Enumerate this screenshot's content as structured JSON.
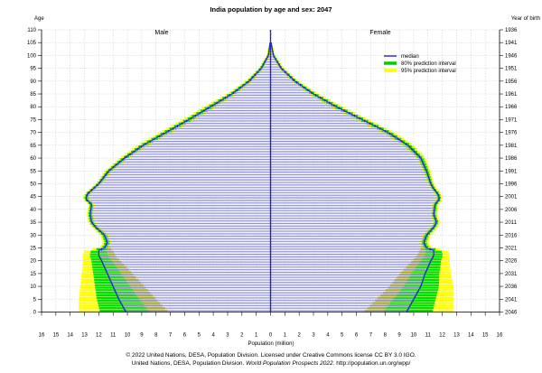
{
  "chart_data": {
    "type": "population_pyramid",
    "title": "India population by age and sex: 2047",
    "y_left_label": "Age",
    "y_right_label": "Year of birth",
    "x_label": "Population (million)",
    "left_group": "Male",
    "right_group": "Female",
    "x_ticks": [
      16,
      15,
      14,
      13,
      12,
      11,
      10,
      9,
      8,
      7,
      6,
      5,
      4,
      3,
      2,
      1,
      0,
      1,
      2,
      3,
      4,
      5,
      6,
      7,
      8,
      9,
      10,
      11,
      12,
      13,
      14,
      15,
      16
    ],
    "age_ticks": [
      0,
      5,
      10,
      15,
      20,
      25,
      30,
      35,
      40,
      45,
      50,
      55,
      60,
      65,
      70,
      75,
      80,
      85,
      90,
      95,
      100,
      105,
      110
    ],
    "birth_year_ticks": [
      "2046",
      "2041",
      "2036",
      "2031",
      "2026",
      "2021",
      "2016",
      "2011",
      "2006",
      "2001",
      "1996",
      "1991",
      "1986",
      "1981",
      "1976",
      "1971",
      "1966",
      "1961",
      "1956",
      "1951",
      "1946",
      "1941",
      "1936"
    ],
    "ylim": [
      0,
      110
    ],
    "xlim": [
      -16,
      16
    ],
    "legend": [
      {
        "label": "median",
        "color": "#2424c8"
      },
      {
        "label": "80% prediction interval",
        "color": "#00cc00"
      },
      {
        "label": "95% prediction interval",
        "color": "#ffff00"
      }
    ],
    "colors": {
      "median": "#2424c8",
      "pi80": "#00dd00",
      "pi95": "#ffff00",
      "bar": "#9090dd"
    },
    "series": {
      "male_median_knots": [
        [
          0,
          10.1
        ],
        [
          5,
          10.6
        ],
        [
          10,
          11.0
        ],
        [
          15,
          11.4
        ],
        [
          20,
          11.8
        ],
        [
          22,
          12.0
        ],
        [
          24,
          12.0
        ],
        [
          25,
          11.6
        ],
        [
          27,
          11.4
        ],
        [
          30,
          11.6
        ],
        [
          33,
          12.2
        ],
        [
          35,
          12.5
        ],
        [
          38,
          12.6
        ],
        [
          42,
          12.5
        ],
        [
          44,
          12.9
        ],
        [
          46,
          12.8
        ],
        [
          48,
          12.4
        ],
        [
          50,
          12.0
        ],
        [
          55,
          11.3
        ],
        [
          60,
          10.2
        ],
        [
          65,
          8.9
        ],
        [
          70,
          7.3
        ],
        [
          75,
          5.7
        ],
        [
          80,
          4.2
        ],
        [
          85,
          2.7
        ],
        [
          90,
          1.5
        ],
        [
          95,
          0.65
        ],
        [
          100,
          0.15
        ],
        [
          105,
          0.03
        ],
        [
          110,
          0.0
        ]
      ],
      "female_median_knots": [
        [
          0,
          9.5
        ],
        [
          5,
          10.0
        ],
        [
          10,
          10.5
        ],
        [
          15,
          10.8
        ],
        [
          20,
          11.2
        ],
        [
          22,
          11.4
        ],
        [
          24,
          11.4
        ],
        [
          25,
          10.9
        ],
        [
          27,
          10.7
        ],
        [
          30,
          10.9
        ],
        [
          33,
          11.4
        ],
        [
          35,
          11.6
        ],
        [
          38,
          11.4
        ],
        [
          42,
          11.5
        ],
        [
          44,
          11.8
        ],
        [
          46,
          11.7
        ],
        [
          48,
          11.4
        ],
        [
          50,
          11.2
        ],
        [
          55,
          10.9
        ],
        [
          60,
          10.5
        ],
        [
          65,
          9.6
        ],
        [
          70,
          8.2
        ],
        [
          75,
          6.4
        ],
        [
          80,
          4.6
        ],
        [
          85,
          3.0
        ],
        [
          90,
          1.7
        ],
        [
          95,
          0.75
        ],
        [
          100,
          0.2
        ],
        [
          105,
          0.04
        ],
        [
          110,
          0.0
        ]
      ],
      "uncertainty_knots_upper_95": [
        [
          0,
          3.3
        ],
        [
          10,
          2.3
        ],
        [
          20,
          1.3
        ],
        [
          24,
          1.0
        ],
        [
          25,
          0.35
        ],
        [
          35,
          0.25
        ],
        [
          50,
          0.22
        ],
        [
          70,
          0.45
        ],
        [
          80,
          0.45
        ],
        [
          90,
          0.25
        ],
        [
          110,
          0.0
        ]
      ],
      "uncertainty_knots_lower_95": [
        [
          0,
          3.0
        ],
        [
          10,
          2.2
        ],
        [
          20,
          1.3
        ],
        [
          24,
          1.0
        ],
        [
          25,
          0.35
        ],
        [
          35,
          0.25
        ],
        [
          50,
          0.22
        ],
        [
          70,
          0.45
        ],
        [
          80,
          0.45
        ],
        [
          90,
          0.25
        ],
        [
          110,
          0.0
        ]
      ]
    },
    "grid": true
  },
  "credit": {
    "line1": "© 2022 United Nations, DESA, Population Division. Licensed under Creative Commons license CC BY 3.0 IGO.",
    "line2_prefix": "United Nations, DESA, Population Division.",
    "line2_italic": "World Population Prospects 2022.",
    "line2_suffix": "http://population.un.org/wpp/"
  }
}
